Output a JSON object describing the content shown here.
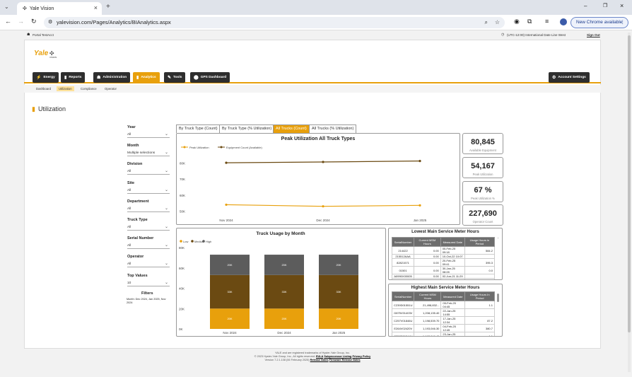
{
  "browser": {
    "tab_title": "Yale Vision",
    "url": "yalevision.com/Pages/Analytics/BIAnalytics.aspx",
    "new_chrome": "New Chrome available"
  },
  "topbar": {
    "user": "Portal TestAcct",
    "timezone": "(UTC-12:00) International Date Line West",
    "signout": "Sign Out"
  },
  "logo": "Yale",
  "logo_sub": "VISION",
  "nav": [
    {
      "label": "Energy",
      "icon": "⚡"
    },
    {
      "label": "Reports",
      "icon": "▮"
    },
    {
      "label": "Administration",
      "icon": "☗"
    },
    {
      "label": "Analytics",
      "icon": "▮"
    },
    {
      "label": "Tools",
      "icon": "✎"
    },
    {
      "label": "GPS Dashboard",
      "icon": "⬤"
    }
  ],
  "account_settings": "Account Settings",
  "subnav": [
    "Dashboard",
    "Utilization",
    "Compliance",
    "Operator"
  ],
  "page_title": "Utilization",
  "filters": [
    {
      "label": "Year",
      "value": "All"
    },
    {
      "label": "Month",
      "value": "Multiple selections"
    },
    {
      "label": "Division",
      "value": "All"
    },
    {
      "label": "Site",
      "value": "All"
    },
    {
      "label": "Department",
      "value": "All"
    },
    {
      "label": "Truck Type",
      "value": "All"
    },
    {
      "label": "Serial Number",
      "value": "All"
    },
    {
      "label": "Operator",
      "value": "All"
    },
    {
      "label": "Top Values",
      "value": "10"
    }
  ],
  "filters_title": "Filters",
  "filters_summary": "Month: Dec 2024, Jan 2025, Nov 2024",
  "chart_tabs": [
    "By Truck Type (Count)",
    "By Truck Type (% Utilization)",
    "All Trucks (Count)",
    "All Trucks (% Utilization)"
  ],
  "kpis": [
    {
      "value": "80,845",
      "caption": "Available Equipment"
    },
    {
      "value": "54,167",
      "caption": "Peak Utilization"
    },
    {
      "value": "67 %",
      "caption": "Peak Utilization %"
    },
    {
      "value": "227,690",
      "caption": "Operator Count"
    }
  ],
  "chart_data": [
    {
      "type": "line",
      "title": "Peak Utilization All Truck Types",
      "categories": [
        "Nov 2024",
        "Dec 2024",
        "Jan 2025"
      ],
      "series": [
        {
          "name": "Peak Utilization",
          "color": "#e8a00c",
          "values": [
            54000,
            53000,
            53600
          ]
        },
        {
          "name": "Equipment Count (Available)",
          "color": "#6b4a12",
          "values": [
            80200,
            80700,
            81300
          ]
        }
      ],
      "yticks": [
        "80K",
        "70K",
        "60K",
        "50K"
      ],
      "ylim": [
        48000,
        86000
      ]
    },
    {
      "type": "bar",
      "title": "Truck Usage by Month",
      "categories": [
        "Nov 2024",
        "Dec 2024",
        "Jan 2025"
      ],
      "series": [
        {
          "name": "Low",
          "color": "#e8a00c",
          "values": [
            20000,
            20000,
            20000
          ]
        },
        {
          "name": "Medium",
          "color": "#6b4a12",
          "values": [
            33000,
            33000,
            33000
          ]
        },
        {
          "name": "High",
          "color": "#5c5c5c",
          "values": [
            20000,
            20000,
            20000
          ]
        }
      ],
      "bar_labels": [
        [
          "20K",
          "33K",
          "20K"
        ],
        [
          "20K",
          "33K",
          "20K"
        ],
        [
          "20K",
          "33K",
          "20K"
        ]
      ],
      "yticks": [
        "80K",
        "60K",
        "40K",
        "20K",
        "0K"
      ],
      "ylim": [
        0,
        80000
      ]
    }
  ],
  "lowest": {
    "title": "Lowest Main Service Meter Hours",
    "headers": [
      "SerialNumber",
      "Current MSM Hours",
      "Measured Date",
      "Usage Hours in Period"
    ],
    "rows": [
      [
        "214422",
        "0.00",
        "05-Feb-25 09:18",
        "584.2"
      ],
      [
        "215512AAA",
        "0.00",
        "10-Oct-22 10:07",
        ""
      ],
      [
        "82821571",
        "0.00",
        "20-Feb-25 09:41",
        "395.3"
      ],
      [
        "01501",
        "0.00",
        "30-Jan-25 08:28",
        "0.0"
      ],
      [
        "A0990X00005",
        "0.00",
        "02-Jun-21 11:29",
        ""
      ],
      [
        "A099V01507U",
        "0.00",
        "05-Feb-25 09:00",
        "0.0"
      ]
    ]
  },
  "highest": {
    "title": "Highest Main Service Meter Hours",
    "headers": [
      "SerialNumber",
      "Current MSM Hours",
      "Measured Date",
      "Usage Hours In Period"
    ],
    "rows": [
      [
        "C239D01551U",
        "21,498,832...",
        "05-Feb-25 04:45",
        "1.1"
      ],
      [
        "G875V01403V",
        "1,208,135.40",
        "22-Jan-25 14:55",
        ""
      ],
      [
        "C257V01846U",
        "1,198,539.70",
        "17-Jan-25 12:34",
        "87.2"
      ],
      [
        "E264V02420V",
        "1,193,046.30",
        "04-Feb-25 12:45",
        "380.7"
      ],
      [
        "C257C01544V",
        "1,193,046.40",
        "23-Jan-25 14:54",
        "1.1"
      ],
      [
        "C257C01860V",
        "1,193,046.30",
        "04-Dec-24 12:08",
        "72.6"
      ]
    ]
  },
  "footer": {
    "line1": "YALE and  are registered trademarks of Hyster-Yale Group, Inc.",
    "line2": "© 2023 Hyster-Yale Group, Inc., All rights reserved.",
    "eula": "EULA",
    "sub": "Subprocessor Listing",
    "privacy": "Privacy Policy",
    "version": "Version 7.2.1.108 (06 February 2025)",
    "release": "Release Notes",
    "firmware": "Firmware Release Notes"
  }
}
